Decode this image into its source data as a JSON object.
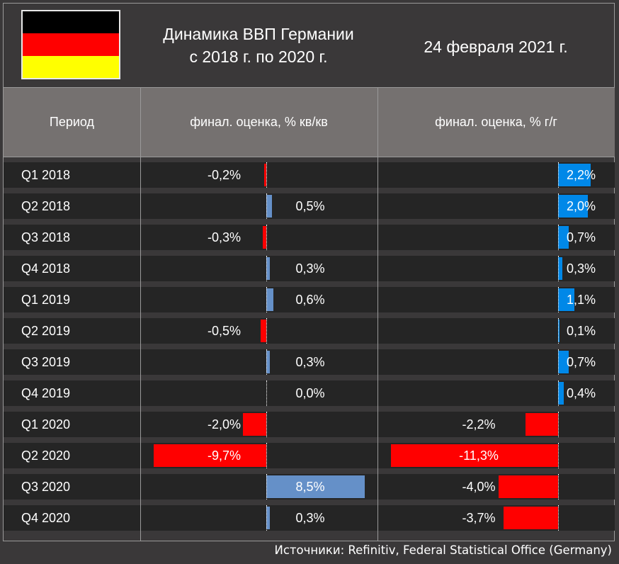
{
  "header": {
    "title_line1": "Динамика ВВП Германии",
    "title_line2": "с 2018 г. по 2020 г.",
    "date": "24 февраля 2021 г.",
    "flag_colors": [
      "#000000",
      "#ff0000",
      "#ffff00"
    ]
  },
  "chart_data": {
    "type": "table",
    "columns": [
      "Период",
      "финал. оценка, % кв/кв",
      "финал. оценка, % г/г"
    ],
    "categories": [
      "Q1 2018",
      "Q2 2018",
      "Q3 2018",
      "Q4 2018",
      "Q1 2019",
      "Q2 2019",
      "Q3 2019",
      "Q4 2019",
      "Q1 2020",
      "Q2 2020",
      "Q3 2020",
      "Q4 2020"
    ],
    "series": [
      {
        "name": "финал. оценка, % кв/кв",
        "values": [
          -0.2,
          0.5,
          -0.3,
          0.3,
          0.6,
          -0.5,
          0.3,
          0.0,
          -2.0,
          -9.7,
          8.5,
          0.3
        ],
        "labels": [
          "-0,2%",
          "0,5%",
          "-0,3%",
          "0,3%",
          "0,6%",
          "-0,5%",
          "0,3%",
          "0,0%",
          "-2,0%",
          "-9,7%",
          "8,5%",
          "0,3%"
        ],
        "positive_color": "#6590c8",
        "negative_color": "#ff0000"
      },
      {
        "name": "финал. оценка, % г/г",
        "values": [
          2.2,
          2.0,
          0.7,
          0.3,
          1.1,
          0.1,
          0.7,
          0.4,
          -2.2,
          -11.3,
          -4.0,
          -3.7
        ],
        "labels": [
          "2,2%",
          "2,0%",
          "0,7%",
          "0,3%",
          "1,1%",
          "0,1%",
          "0,7%",
          "0,4%",
          "-2,2%",
          "-11,3%",
          "-4,0%",
          "-3,7%"
        ],
        "positive_color": "#0088e8",
        "negative_color": "#ff0000"
      }
    ]
  },
  "footer": {
    "source": "Источники: Refinitiv, Federal Statistical Office (Germany)"
  }
}
